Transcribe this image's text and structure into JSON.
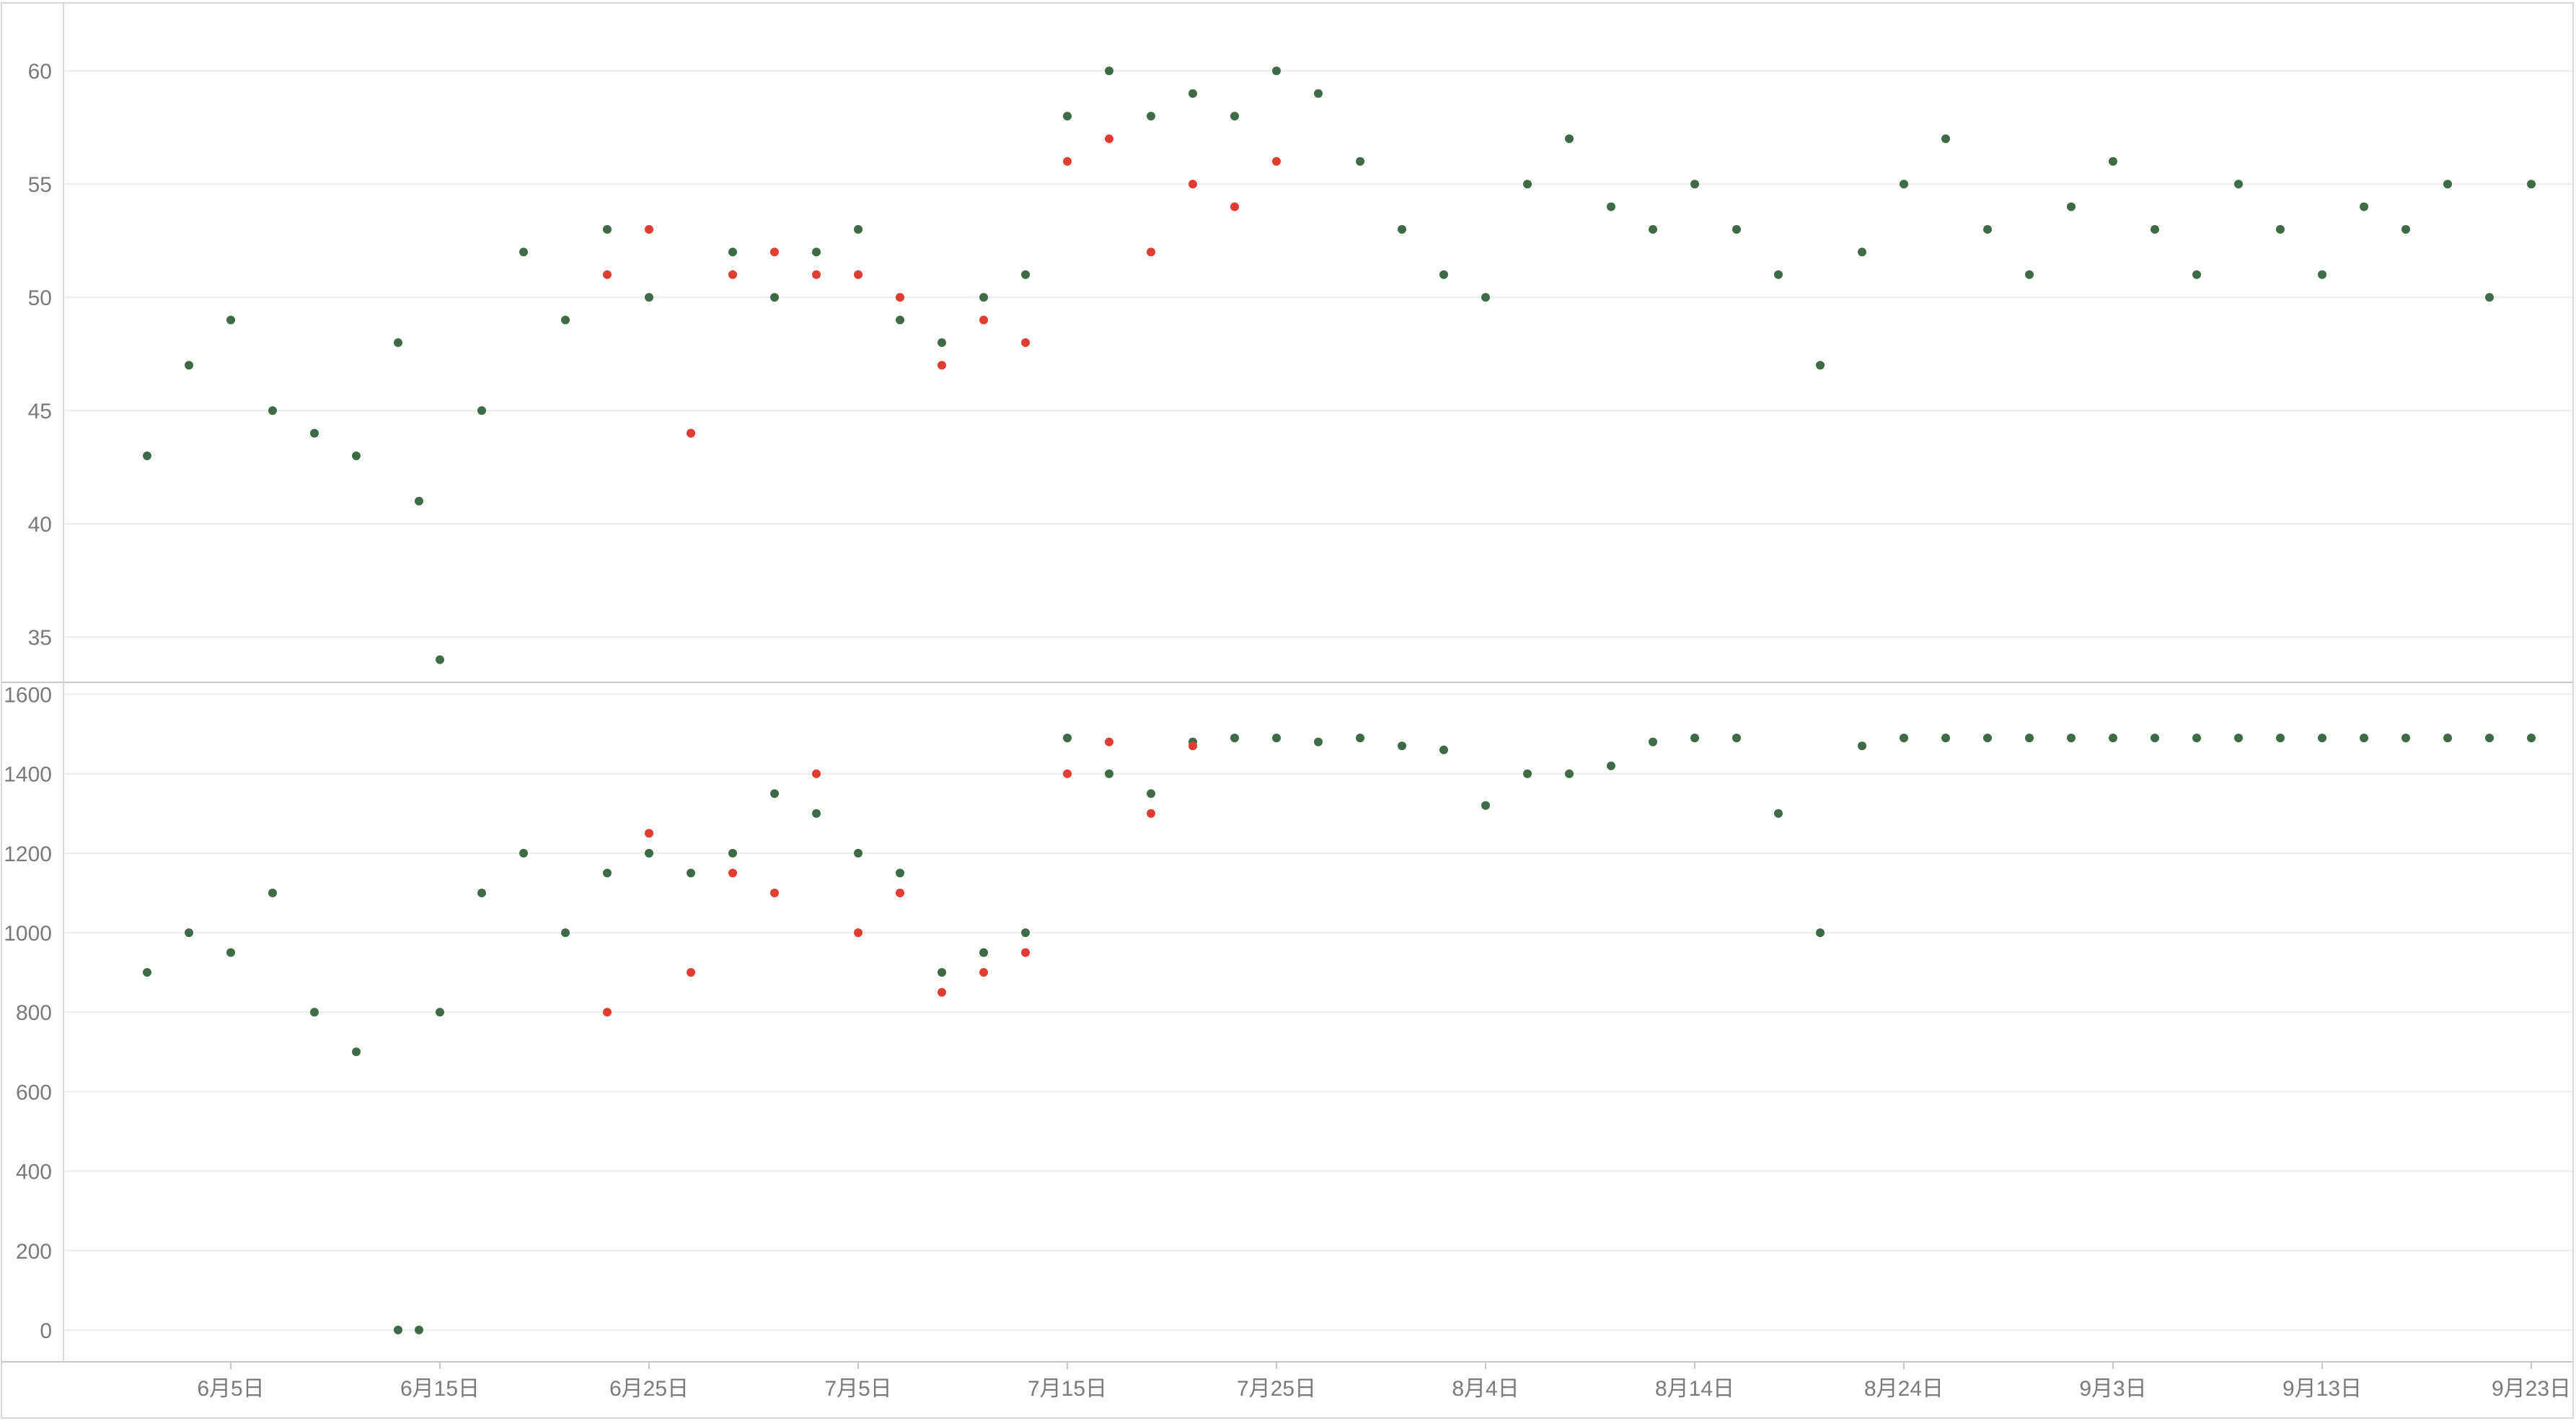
{
  "chart_data": [
    {
      "type": "scatter",
      "title": "",
      "xlabel": "",
      "ylabel": "",
      "ylim": [
        33,
        63
      ],
      "yticks": [
        35,
        40,
        45,
        50,
        55,
        60
      ],
      "grid": true,
      "legend": "none",
      "series": [
        {
          "color": "#3d6b45",
          "x": [
            "2024-06-01",
            "2024-06-03",
            "2024-06-05",
            "2024-06-07",
            "2024-06-09",
            "2024-06-11",
            "2024-06-13",
            "2024-06-14",
            "2024-06-15",
            "2024-06-17",
            "2024-06-19",
            "2024-06-21",
            "2024-06-23",
            "2024-06-25",
            "2024-06-27",
            "2024-06-29",
            "2024-07-01",
            "2024-07-03",
            "2024-07-05",
            "2024-07-07",
            "2024-07-09",
            "2024-07-11",
            "2024-07-13",
            "2024-07-15",
            "2024-07-17",
            "2024-07-19",
            "2024-07-21",
            "2024-07-23",
            "2024-07-25",
            "2024-07-27",
            "2024-07-29",
            "2024-07-31",
            "2024-08-02",
            "2024-08-04",
            "2024-08-06",
            "2024-08-08",
            "2024-08-10",
            "2024-08-12",
            "2024-08-14",
            "2024-08-16",
            "2024-08-18",
            "2024-08-20",
            "2024-08-22",
            "2024-08-24",
            "2024-08-26",
            "2024-08-28",
            "2024-08-30",
            "2024-09-01",
            "2024-09-03",
            "2024-09-05",
            "2024-09-07",
            "2024-09-09",
            "2024-09-11",
            "2024-09-13",
            "2024-09-15",
            "2024-09-17",
            "2024-09-19",
            "2024-09-21",
            "2024-09-23"
          ],
          "y": [
            43,
            47,
            49,
            45,
            44,
            43,
            48,
            41,
            34,
            45,
            52,
            49,
            53,
            50,
            44,
            52,
            50,
            52,
            53,
            49,
            48,
            50,
            51,
            58,
            60,
            58,
            59,
            58,
            60,
            59,
            56,
            53,
            51,
            50,
            55,
            57,
            54,
            53,
            55,
            53,
            51,
            47,
            52,
            55,
            57,
            53,
            51,
            54,
            56,
            53,
            51,
            55,
            53,
            51,
            54,
            53,
            55,
            50,
            55
          ]
        },
        {
          "color": "#e03c31",
          "x": [
            "2024-06-23",
            "2024-06-25",
            "2024-06-27",
            "2024-06-29",
            "2024-07-01",
            "2024-07-03",
            "2024-07-05",
            "2024-07-07",
            "2024-07-09",
            "2024-07-11",
            "2024-07-13",
            "2024-07-15",
            "2024-07-17",
            "2024-07-19",
            "2024-07-21",
            "2024-07-23",
            "2024-07-25"
          ],
          "y": [
            51,
            53,
            44,
            51,
            52,
            51,
            51,
            50,
            47,
            49,
            48,
            56,
            57,
            52,
            55,
            54,
            56
          ]
        }
      ]
    },
    {
      "type": "scatter",
      "title": "",
      "xlabel": "",
      "ylabel": "",
      "ylim": [
        -80,
        1630
      ],
      "yticks": [
        0,
        200,
        400,
        600,
        800,
        1000,
        1200,
        1400,
        1600
      ],
      "grid": true,
      "legend": "none",
      "series": [
        {
          "color": "#3d6b45",
          "x": [
            "2024-06-01",
            "2024-06-03",
            "2024-06-05",
            "2024-06-07",
            "2024-06-09",
            "2024-06-11",
            "2024-06-13",
            "2024-06-14",
            "2024-06-15",
            "2024-06-17",
            "2024-06-19",
            "2024-06-21",
            "2024-06-23",
            "2024-06-25",
            "2024-06-27",
            "2024-06-29",
            "2024-07-01",
            "2024-07-03",
            "2024-07-05",
            "2024-07-07",
            "2024-07-09",
            "2024-07-11",
            "2024-07-13",
            "2024-07-15",
            "2024-07-17",
            "2024-07-19",
            "2024-07-21",
            "2024-07-23",
            "2024-07-25",
            "2024-07-27",
            "2024-07-29",
            "2024-07-31",
            "2024-08-02",
            "2024-08-04",
            "2024-08-06",
            "2024-08-08",
            "2024-08-10",
            "2024-08-12",
            "2024-08-14",
            "2024-08-16",
            "2024-08-18",
            "2024-08-20",
            "2024-08-22",
            "2024-08-24",
            "2024-08-26",
            "2024-08-28",
            "2024-08-30",
            "2024-09-01",
            "2024-09-03",
            "2024-09-05",
            "2024-09-07",
            "2024-09-09",
            "2024-09-11",
            "2024-09-13",
            "2024-09-15",
            "2024-09-17",
            "2024-09-19",
            "2024-09-21",
            "2024-09-23"
          ],
          "y": [
            900,
            1000,
            950,
            1100,
            800,
            700,
            0,
            0,
            800,
            1100,
            1200,
            1000,
            1150,
            1200,
            1150,
            1200,
            1350,
            1300,
            1200,
            1150,
            900,
            950,
            1000,
            1490,
            1400,
            1350,
            1480,
            1490,
            1490,
            1480,
            1490,
            1470,
            1460,
            1320,
            1400,
            1400,
            1420,
            1480,
            1490,
            1490,
            1300,
            1000,
            1470,
            1490,
            1490,
            1490,
            1490,
            1490,
            1490,
            1490,
            1490,
            1490,
            1490,
            1490,
            1490,
            1490,
            1490,
            1490,
            1490
          ]
        },
        {
          "color": "#e03c31",
          "x": [
            "2024-06-23",
            "2024-06-25",
            "2024-06-27",
            "2024-06-29",
            "2024-07-01",
            "2024-07-03",
            "2024-07-05",
            "2024-07-07",
            "2024-07-09",
            "2024-07-11",
            "2024-07-13",
            "2024-07-15",
            "2024-07-17",
            "2024-07-19",
            "2024-07-21"
          ],
          "y": [
            800,
            1250,
            900,
            1150,
            1100,
            1400,
            1000,
            1100,
            850,
            900,
            950,
            1400,
            1480,
            1300,
            1470
          ]
        }
      ]
    }
  ],
  "x_axis": {
    "ticks": [
      {
        "date": "2024-06-05",
        "label": "6月5日"
      },
      {
        "date": "2024-06-15",
        "label": "6月15日"
      },
      {
        "date": "2024-06-25",
        "label": "6月25日"
      },
      {
        "date": "2024-07-05",
        "label": "7月5日"
      },
      {
        "date": "2024-07-15",
        "label": "7月15日"
      },
      {
        "date": "2024-07-25",
        "label": "7月25日"
      },
      {
        "date": "2024-08-04",
        "label": "8月4日"
      },
      {
        "date": "2024-08-14",
        "label": "8月14日"
      },
      {
        "date": "2024-08-24",
        "label": "8月24日"
      },
      {
        "date": "2024-09-03",
        "label": "9月3日"
      },
      {
        "date": "2024-09-13",
        "label": "9月13日"
      },
      {
        "date": "2024-09-23",
        "label": "9月23日"
      }
    ],
    "xlim": [
      "2024-05-28",
      "2024-09-25"
    ]
  }
}
